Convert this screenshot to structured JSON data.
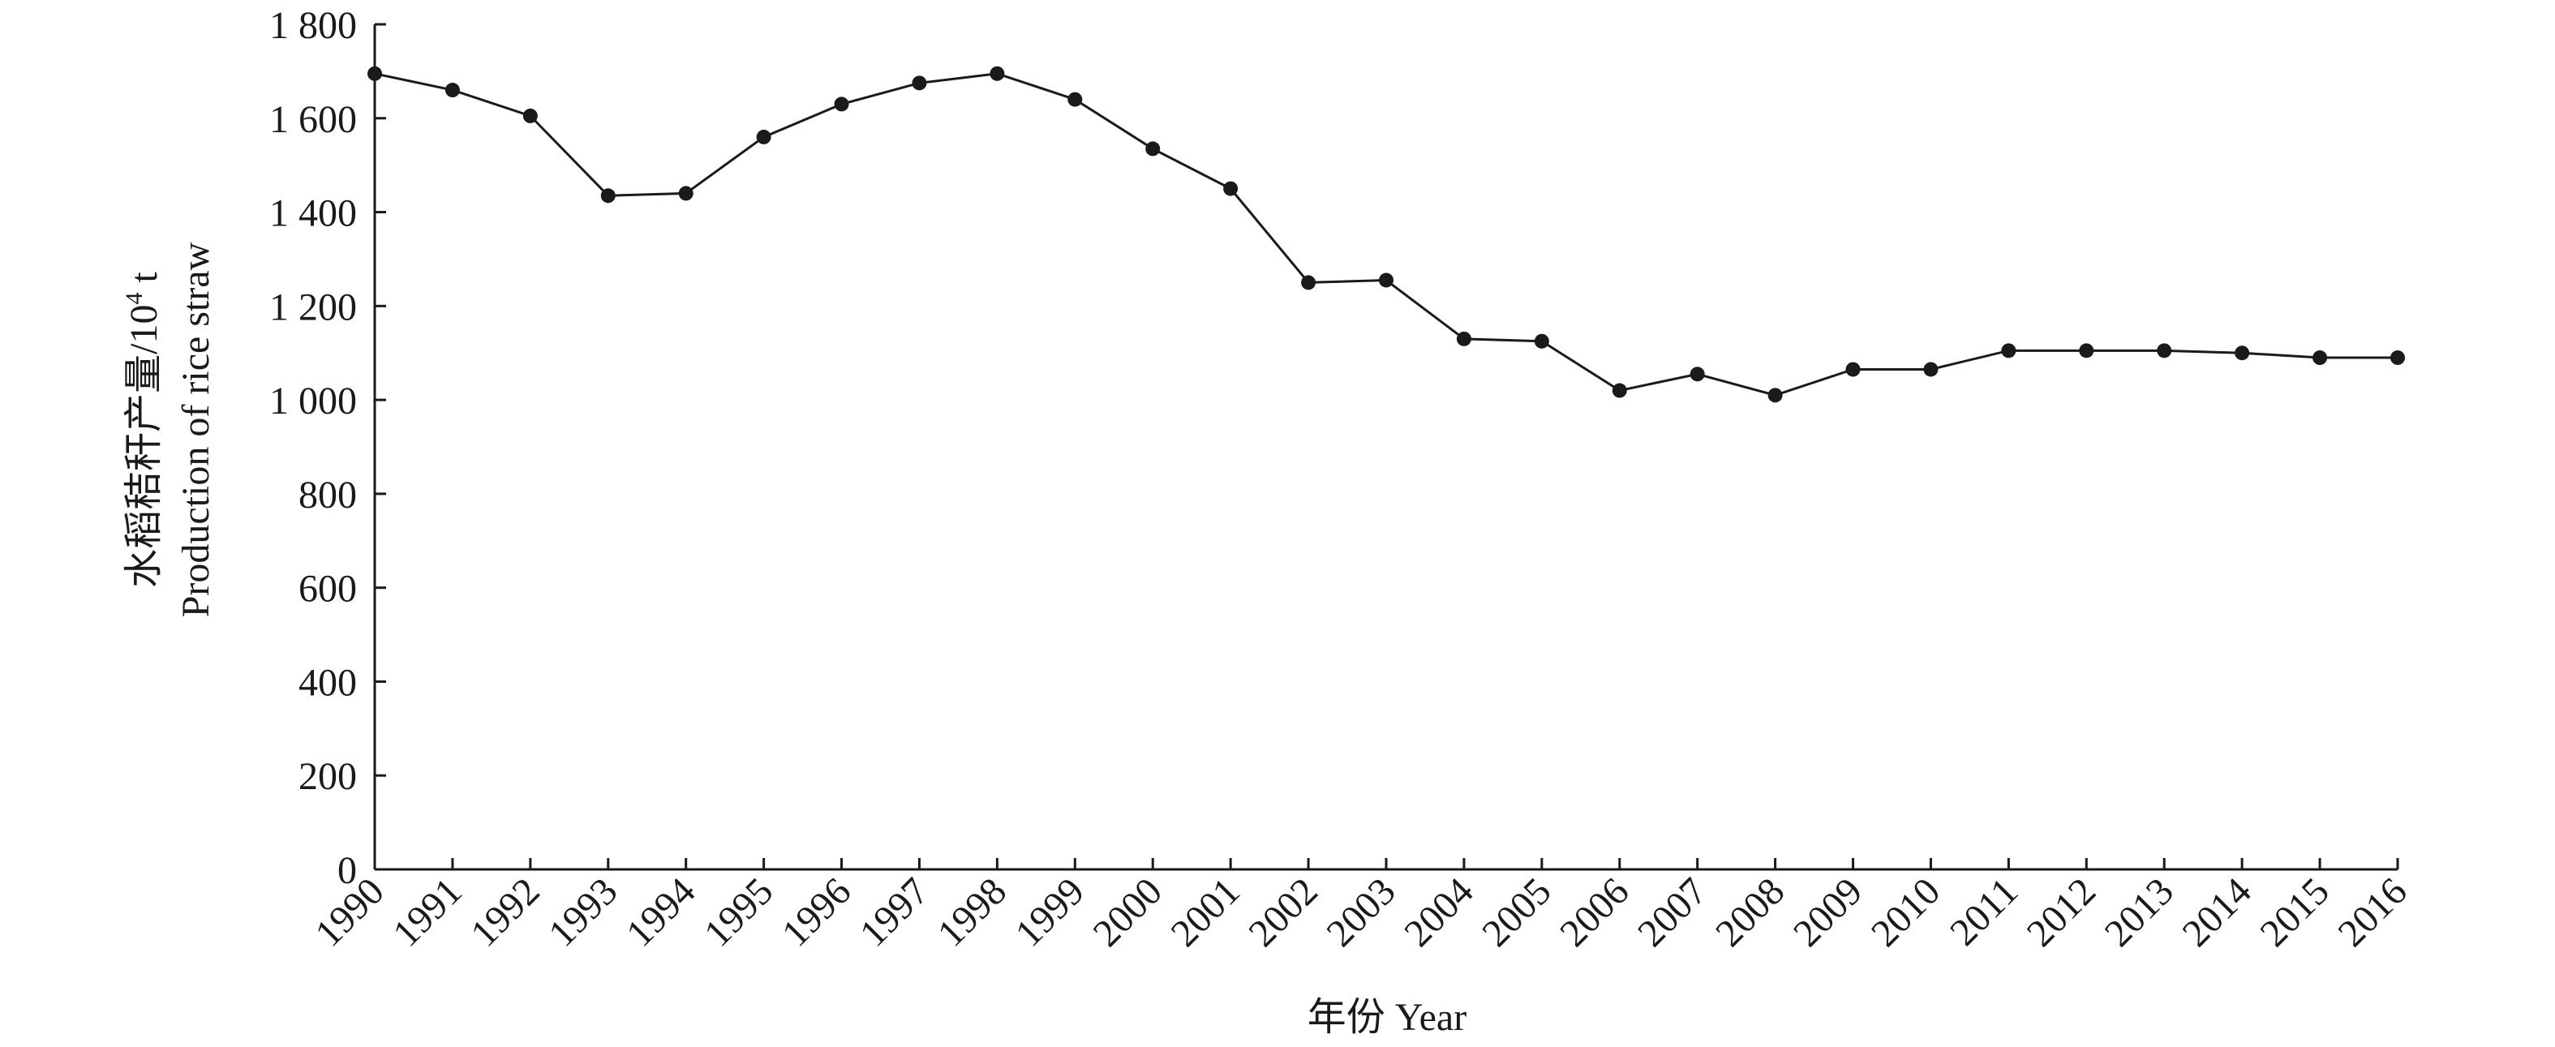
{
  "chart_data": {
    "type": "line",
    "x": [
      "1990",
      "1991",
      "1992",
      "1993",
      "1994",
      "1995",
      "1996",
      "1997",
      "1998",
      "1999",
      "2000",
      "2001",
      "2002",
      "2003",
      "2004",
      "2005",
      "2006",
      "2007",
      "2008",
      "2009",
      "2010",
      "2011",
      "2012",
      "2013",
      "2014",
      "2015",
      "2016"
    ],
    "series": [
      {
        "values": [
          1695,
          1660,
          1605,
          1435,
          1440,
          1560,
          1630,
          1675,
          1695,
          1640,
          1535,
          1450,
          1250,
          1255,
          1130,
          1125,
          1020,
          1055,
          1010,
          1065,
          1065,
          1105,
          1105,
          1105,
          1100,
          1090,
          1090
        ]
      }
    ],
    "ylim": [
      0,
      1800
    ],
    "yticks": [
      0,
      200,
      400,
      600,
      800,
      1000,
      1200,
      1400,
      1600,
      1800
    ],
    "ytick_labels": [
      "0",
      "200",
      "400",
      "600",
      "800",
      "1 000",
      "1 200",
      "1 400",
      "1 600",
      "1 800"
    ],
    "xlabel": "年份 Year",
    "ylabel_cn": "水稻秸秆产量/10",
    "ylabel_sup": "4",
    "ylabel_unit": " t",
    "ylabel_en": "Production of rice straw",
    "grid": false,
    "colors": {
      "line": "#1a1a1a",
      "axis": "#1a1a1a",
      "background": "#ffffff"
    }
  }
}
